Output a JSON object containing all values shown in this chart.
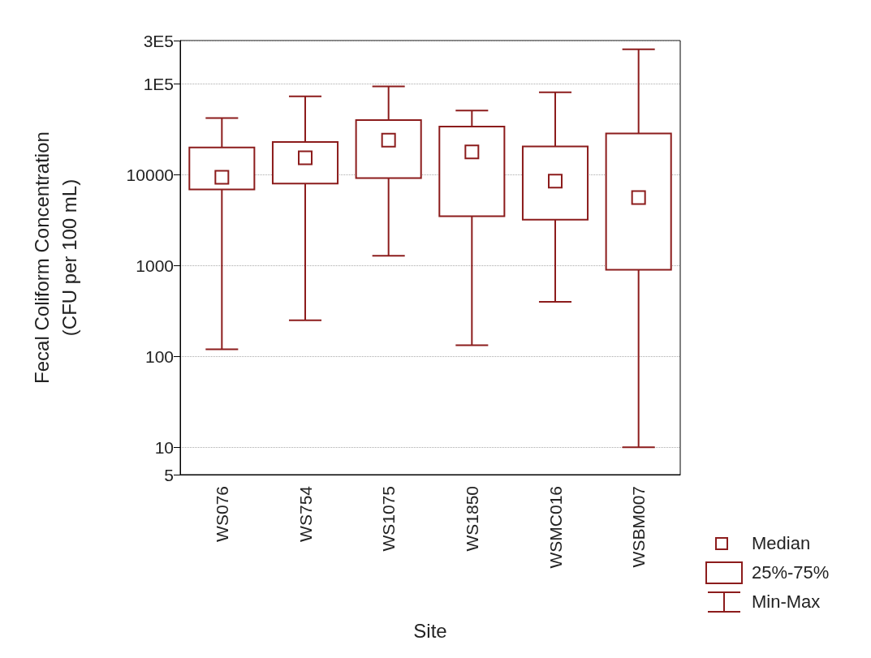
{
  "chart_data": {
    "type": "box",
    "xlabel": "Site",
    "ylabel": "Fecal Coliform Concentration\n(CFU per 100 mL)",
    "categories": [
      "WS076",
      "WS754",
      "WS1075",
      "WS1850",
      "WSMC016",
      "WSBM007"
    ],
    "boxes": [
      {
        "low": 120,
        "q1": 6900,
        "median": 9400,
        "q3": 20000,
        "high": 42000
      },
      {
        "low": 250,
        "q1": 8000,
        "median": 15400,
        "q3": 23000,
        "high": 73000
      },
      {
        "low": 1280,
        "q1": 9200,
        "median": 24000,
        "q3": 40000,
        "high": 94000
      },
      {
        "low": 133,
        "q1": 3500,
        "median": 17800,
        "q3": 34000,
        "high": 51000
      },
      {
        "low": 400,
        "q1": 3200,
        "median": 8500,
        "q3": 20500,
        "high": 81000
      },
      {
        "low": 10,
        "q1": 900,
        "median": 5600,
        "q3": 28500,
        "high": 240000
      }
    ],
    "color": "#8c1c1c",
    "log": true,
    "ylim": [
      5,
      300000
    ],
    "yticks": [
      5,
      10,
      100,
      1000,
      10000,
      {
        "value": 100000,
        "label": "1E5"
      },
      {
        "value": 300000,
        "label": "3E5"
      }
    ],
    "grid": true,
    "marker": "square",
    "annotations": [
      "Median",
      "25%-75%",
      "Min-Max"
    ]
  }
}
